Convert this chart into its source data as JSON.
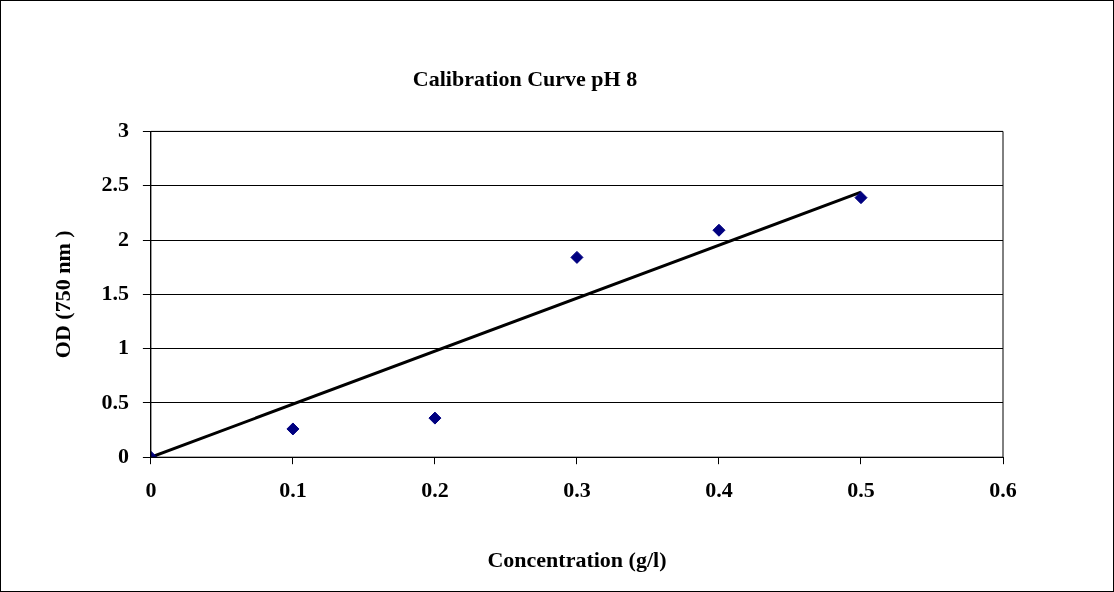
{
  "chart_data": {
    "type": "scatter",
    "title": "Calibration Curve pH 8",
    "xlabel": "Concentration (g/l)",
    "ylabel": "OD (750 nm )",
    "series": [
      {
        "type": "scatter",
        "color": "#000080",
        "marker": "diamond",
        "x": [
          0,
          0.1,
          0.2,
          0.3,
          0.4,
          0.5
        ],
        "values": [
          0,
          0.26,
          0.36,
          1.84,
          2.09,
          2.39
        ]
      },
      {
        "type": "line",
        "color": "#000000",
        "marker": "none",
        "line_style": "solid",
        "x": [
          0,
          0.5
        ],
        "values": [
          0,
          2.44
        ]
      }
    ],
    "xlim": [
      0,
      0.6
    ],
    "xticks": [
      0,
      0.1,
      0.2,
      0.3,
      0.4,
      0.5,
      0.6
    ],
    "ylim": [
      0,
      3
    ],
    "yticks": [
      0,
      0.5,
      1,
      1.5,
      2,
      2.5,
      3
    ],
    "grid": "y",
    "legend": false
  }
}
